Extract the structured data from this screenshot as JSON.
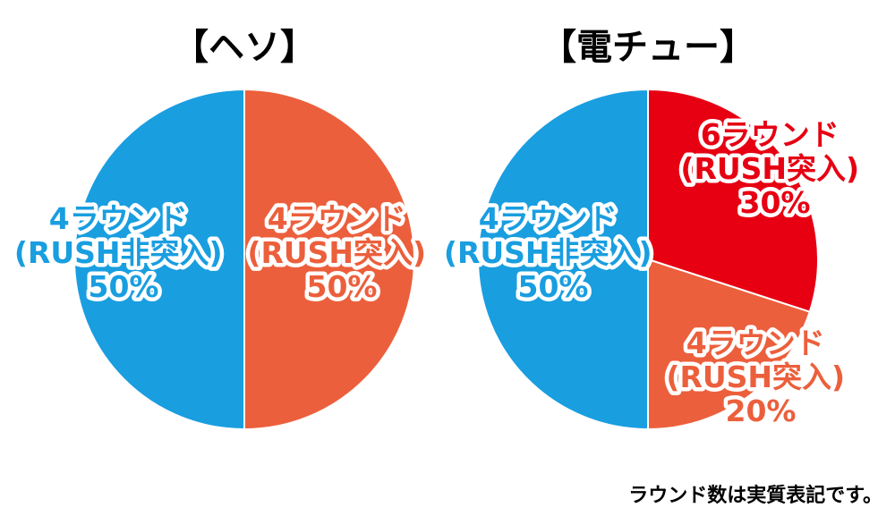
{
  "chart_data": [
    {
      "type": "pie",
      "title": "【ヘソ】",
      "slices": [
        {
          "label": [
            "4ラウンド",
            "(RUSH非突入)",
            "50%"
          ],
          "value": 50,
          "color": "#199ee0"
        },
        {
          "label": [
            "4ラウンド",
            "(RUSH突入)",
            "50%"
          ],
          "value": 50,
          "color": "#ec5f3c"
        }
      ]
    },
    {
      "type": "pie",
      "title": "【電チュー】",
      "slices": [
        {
          "label": [
            "4ラウンド",
            "(RUSH非突入)",
            "50%"
          ],
          "value": 50,
          "color": "#199ee0"
        },
        {
          "label": [
            "6ラウンド",
            "(RUSH突入)",
            "30%"
          ],
          "value": 30,
          "color": "#e60012"
        },
        {
          "label": [
            "4ラウンド",
            "(RUSH突入)",
            "20%"
          ],
          "value": 20,
          "color": "#ec5f3c"
        }
      ]
    }
  ],
  "footnote": "ラウンド数は実質表記です。"
}
